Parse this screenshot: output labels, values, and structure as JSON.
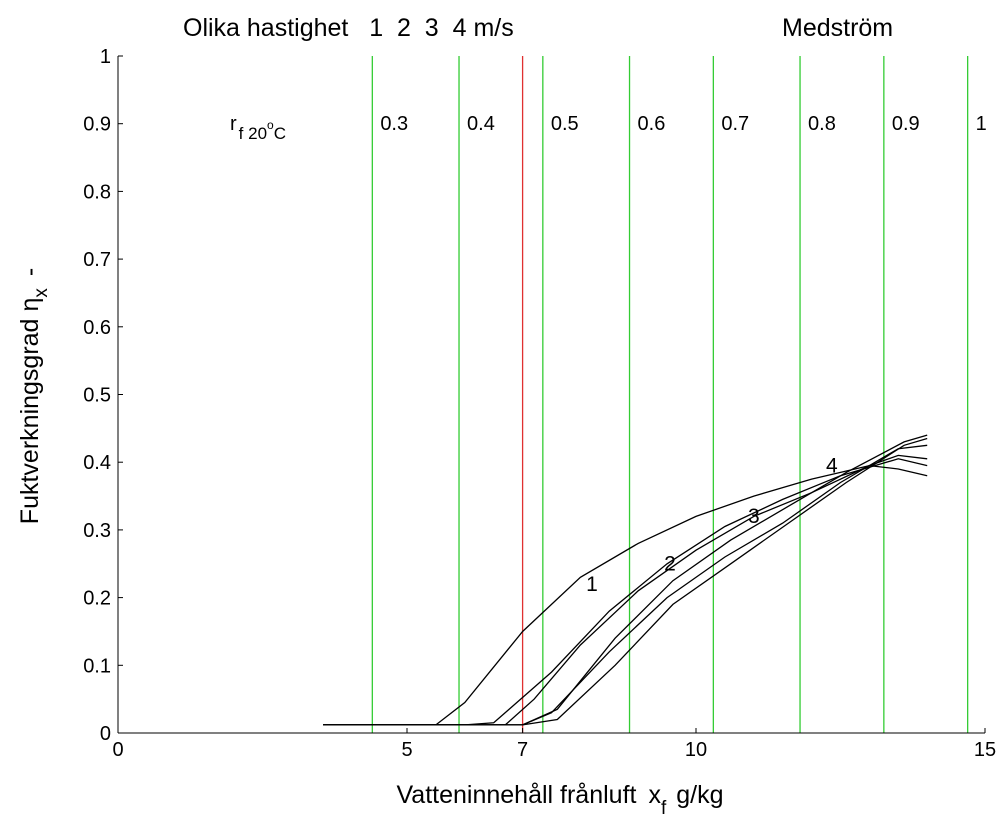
{
  "chart_data": {
    "type": "line",
    "title_left": "Olika hastighet   1  2  3  4 m/s",
    "title_right": "Medström",
    "xlabel": "Vatteninnehåll frånluft",
    "xlabel_symbol": "x",
    "xlabel_sub": "f",
    "xlabel_unit": "g/kg",
    "ylabel": "Fuktverkningsgrad",
    "ylabel_symbol": "η",
    "ylabel_sub": "x",
    "ylabel_unit": "-",
    "xlim": [
      0,
      15
    ],
    "ylim": [
      0,
      1
    ],
    "xticks": [
      0,
      5,
      7,
      10,
      15
    ],
    "yticks": [
      0,
      0.1,
      0.2,
      0.3,
      0.4,
      0.5,
      0.6,
      0.7,
      0.8,
      0.9,
      1
    ],
    "ytick_labels": [
      "0",
      "0.1",
      "0.2",
      "0.3",
      "0.4",
      "0.5",
      "0.6",
      "0.7",
      "0.8",
      "0.9",
      "1"
    ],
    "grid": false,
    "rf_label": {
      "r": "r",
      "sub": "f 20",
      "sup": "o",
      "unit": "C"
    },
    "rf_lines": [
      {
        "x": 4.4,
        "label": "0.3",
        "color": "#33cc33"
      },
      {
        "x": 5.9,
        "label": "0.4",
        "color": "#33cc33"
      },
      {
        "x": 7.0,
        "label": "",
        "color": "#e03030"
      },
      {
        "x": 7.35,
        "label": "0.5",
        "color": "#33cc33"
      },
      {
        "x": 8.85,
        "label": "0.6",
        "color": "#33cc33"
      },
      {
        "x": 10.3,
        "label": "0.7",
        "color": "#33cc33"
      },
      {
        "x": 11.8,
        "label": "0.8",
        "color": "#33cc33"
      },
      {
        "x": 13.25,
        "label": "0.9",
        "color": "#33cc33"
      },
      {
        "x": 14.7,
        "label": "1",
        "color": "#33cc33"
      }
    ],
    "series": [
      {
        "name": "1",
        "label_at": [
          8.2,
          0.21
        ],
        "x": [
          3.55,
          5.5,
          6.0,
          7.0,
          8.0,
          9.0,
          10.0,
          11.0,
          12.0,
          13.0,
          13.5,
          14.0
        ],
        "y": [
          0.012,
          0.012,
          0.045,
          0.15,
          0.23,
          0.28,
          0.32,
          0.35,
          0.375,
          0.395,
          0.39,
          0.38
        ]
      },
      {
        "name": "",
        "label_at": null,
        "x": [
          3.55,
          5.5,
          6.0,
          6.5,
          7.5,
          8.5,
          9.5,
          10.5,
          11.5,
          12.5,
          13.5,
          14.0
        ],
        "y": [
          0.012,
          0.012,
          0.012,
          0.015,
          0.09,
          0.18,
          0.25,
          0.305,
          0.345,
          0.38,
          0.405,
          0.395
        ]
      },
      {
        "name": "2",
        "label_at": [
          9.55,
          0.24
        ],
        "x": [
          3.55,
          6.0,
          6.7,
          7.2,
          8.0,
          9.0,
          10.0,
          11.0,
          12.0,
          13.0,
          13.5,
          14.0
        ],
        "y": [
          0.012,
          0.012,
          0.012,
          0.05,
          0.13,
          0.21,
          0.27,
          0.32,
          0.355,
          0.395,
          0.41,
          0.405
        ]
      },
      {
        "name": "3",
        "label_at": [
          11.0,
          0.31
        ],
        "x": [
          3.55,
          6.0,
          7.0,
          7.5,
          8.5,
          9.5,
          10.5,
          11.5,
          12.5,
          13.5,
          14.0
        ],
        "y": [
          0.012,
          0.012,
          0.012,
          0.03,
          0.12,
          0.2,
          0.26,
          0.31,
          0.37,
          0.42,
          0.425
        ]
      },
      {
        "name": "4",
        "label_at": [
          12.35,
          0.385
        ],
        "x": [
          3.55,
          6.0,
          7.0,
          7.6,
          8.6,
          9.6,
          10.6,
          11.6,
          12.6,
          13.6,
          14.0
        ],
        "y": [
          0.012,
          0.012,
          0.012,
          0.02,
          0.1,
          0.19,
          0.25,
          0.31,
          0.37,
          0.425,
          0.435
        ]
      },
      {
        "name": "",
        "label_at": null,
        "x": [
          3.55,
          6.0,
          7.0,
          7.6,
          8.6,
          9.6,
          10.6,
          11.6,
          12.6,
          13.6,
          14.0
        ],
        "y": [
          0.012,
          0.012,
          0.012,
          0.035,
          0.14,
          0.225,
          0.285,
          0.335,
          0.385,
          0.43,
          0.44
        ]
      }
    ]
  }
}
